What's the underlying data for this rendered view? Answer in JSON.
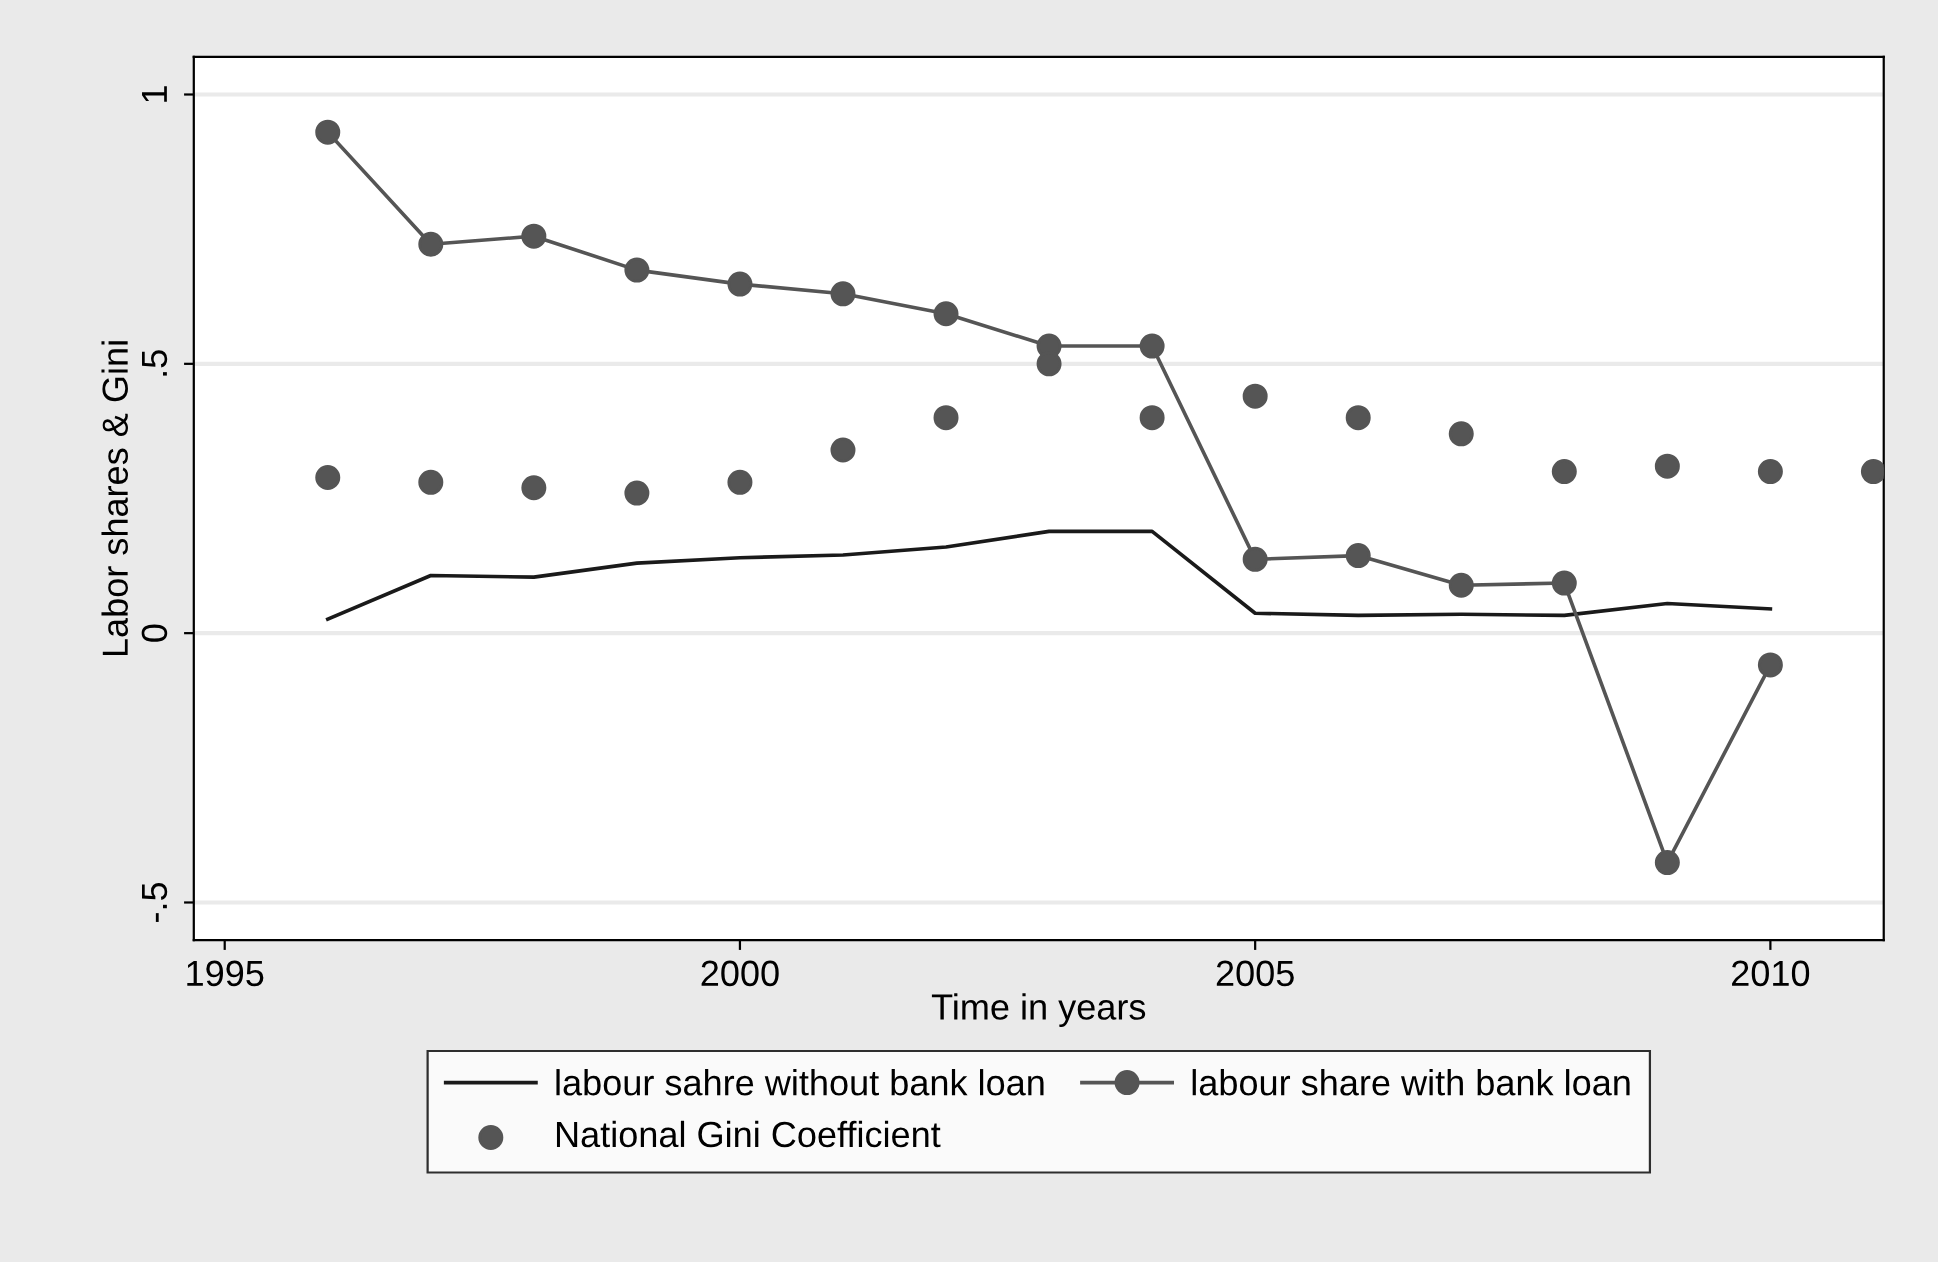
{
  "chart_data": {
    "type": "line",
    "xlabel": "Time in years",
    "ylabel": "Labor shares & Gini",
    "xlim": [
      1994.7,
      2011.1
    ],
    "xticks": [
      1995,
      2000,
      2005,
      2010
    ],
    "ylim": [
      -0.57,
      1.07
    ],
    "yticks": [
      {
        "value": -0.5,
        "label": "-.5"
      },
      0,
      {
        "value": 0.5,
        "label": ".5"
      },
      1
    ],
    "grid": "y",
    "legend": "bottom",
    "series": [
      {
        "name": "labour sahre without bank loan",
        "color": "#1a1a1a",
        "marker": "none",
        "x": [
          1996,
          1997,
          1998,
          1999,
          2000,
          2001,
          2002,
          2003,
          2004,
          2005,
          2006,
          2007,
          2008,
          2009,
          2010
        ],
        "values": [
          0.026,
          0.107,
          0.104,
          0.13,
          0.14,
          0.145,
          0.16,
          0.189,
          0.189,
          0.037,
          0.033,
          0.035,
          0.033,
          0.055,
          0.045
        ]
      },
      {
        "name": "labour share with bank loan",
        "color": "#555555",
        "marker": "circle",
        "x": [
          1996,
          1997,
          1998,
          1999,
          2000,
          2001,
          2002,
          2003,
          2004,
          2005,
          2006,
          2007,
          2008,
          2009,
          2010
        ],
        "values": [
          0.93,
          0.722,
          0.737,
          0.674,
          0.648,
          0.63,
          0.593,
          0.533,
          0.533,
          0.137,
          0.144,
          0.089,
          0.093,
          -0.426,
          -0.059
        ]
      },
      {
        "name": "National Gini Coefficient",
        "type": "scatter",
        "color": "#555555",
        "marker": "circle",
        "x": [
          1996,
          1997,
          1998,
          1999,
          2000,
          2001,
          2002,
          2003,
          2004,
          2005,
          2006,
          2007,
          2008,
          2009,
          2010,
          2011
        ],
        "values": [
          0.289,
          0.28,
          0.27,
          0.26,
          0.28,
          0.34,
          0.4,
          0.5,
          0.4,
          0.44,
          0.4,
          0.37,
          0.3,
          0.31,
          0.3,
          0.3
        ]
      }
    ]
  }
}
